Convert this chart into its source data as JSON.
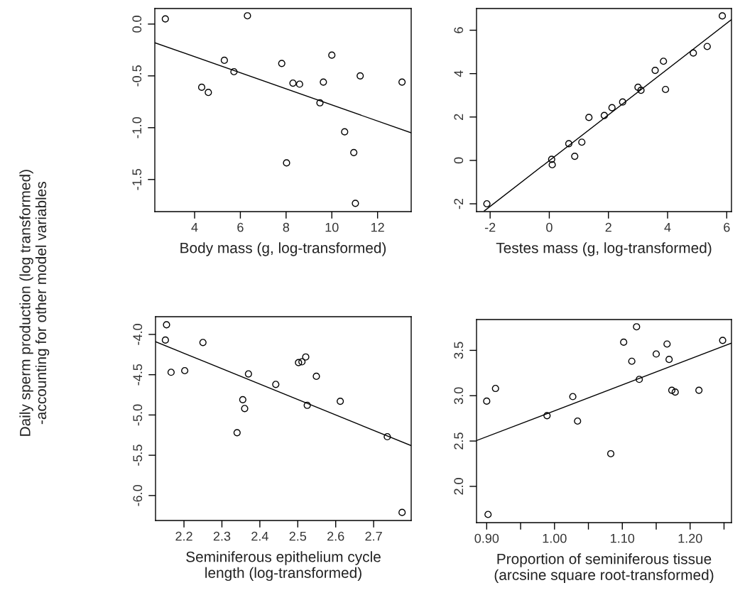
{
  "chart_data": [
    {
      "type": "scatter",
      "xlabel": "Body mass (g, log-transformed)",
      "ylabel": "Daily sperm production (log transformed)\n-accounting for other model variables",
      "xlim": [
        2.26,
        13.47
      ],
      "ylim": [
        -1.81,
        0.15
      ],
      "xticks": [
        4,
        6,
        8,
        10,
        12
      ],
      "yticks": [
        {
          "value": 0,
          "label": "0.0"
        },
        -0.5,
        {
          "value": -1,
          "label": "-1.0"
        },
        -1.5
      ],
      "series": [
        {
          "marker": "circle",
          "color": "#000000",
          "x": [
            2.72,
            6.31,
            5.3,
            5.72,
            4.31,
            4.6,
            7.81,
            8.3,
            8.59,
            10.0,
            9.63,
            11.24,
            9.48,
            10.56,
            10.96,
            8.02,
            11.03,
            13.07
          ],
          "values": [
            0.05,
            0.08,
            -0.35,
            -0.46,
            -0.61,
            -0.66,
            -0.38,
            -0.57,
            -0.58,
            -0.3,
            -0.56,
            -0.5,
            -0.76,
            -1.04,
            -1.24,
            -1.34,
            -1.73,
            -0.56
          ]
        },
        {
          "type": "line",
          "color": "#000000",
          "x": [
            2.26,
            13.47
          ],
          "values": [
            -0.18,
            -1.05
          ]
        }
      ]
    },
    {
      "type": "scatter",
      "xlabel": "Testes mass (g, log-transformed)",
      "xlim": [
        -2.46,
        6.16
      ],
      "ylim": [
        -2.36,
        7.0
      ],
      "xticks": [
        -2,
        0,
        2,
        4,
        6
      ],
      "yticks": [
        -2,
        0,
        2,
        4,
        6
      ],
      "series": [
        {
          "marker": "circle",
          "color": "#000000",
          "x": [
            -2.11,
            0.08,
            0.1,
            0.66,
            0.86,
            1.1,
            1.34,
            1.86,
            2.12,
            2.48,
            3.0,
            3.1,
            3.58,
            3.86,
            3.93,
            4.87,
            5.34,
            5.85
          ],
          "values": [
            -2.0,
            0.05,
            -0.2,
            0.77,
            0.19,
            0.84,
            1.98,
            2.07,
            2.43,
            2.69,
            3.37,
            3.23,
            4.15,
            4.57,
            3.27,
            4.95,
            5.25,
            6.66
          ]
        },
        {
          "type": "line",
          "color": "#000000",
          "x": [
            -2.2,
            6.16
          ],
          "values": [
            -2.33,
            6.49
          ]
        }
      ]
    },
    {
      "type": "scatter",
      "xlabel": "Seminiferous epithelium cycle\nlength (log-transformed)",
      "xlim": [
        2.125,
        2.799
      ],
      "ylim": [
        -6.31,
        -3.78
      ],
      "xticks": [
        2.2,
        2.3,
        2.4,
        2.5,
        2.6,
        2.7
      ],
      "yticks": [
        {
          "value": -4,
          "label": "-4.0"
        },
        -4.5,
        {
          "value": -5,
          "label": "-5.0"
        },
        -5.5,
        {
          "value": -6,
          "label": "-6.0"
        }
      ],
      "series": [
        {
          "marker": "circle",
          "color": "#000000",
          "x": [
            2.154,
            2.151,
            2.166,
            2.202,
            2.25,
            2.34,
            2.355,
            2.36,
            2.37,
            2.442,
            2.502,
            2.511,
            2.521,
            2.525,
            2.549,
            2.612,
            2.736,
            2.775
          ],
          "values": [
            -3.88,
            -4.07,
            -4.47,
            -4.45,
            -4.1,
            -5.22,
            -4.81,
            -4.92,
            -4.49,
            -4.62,
            -4.35,
            -4.34,
            -4.28,
            -4.88,
            -4.52,
            -4.83,
            -5.27,
            -6.21
          ]
        },
        {
          "type": "line",
          "color": "#000000",
          "x": [
            2.125,
            2.799
          ],
          "values": [
            -4.09,
            -5.38
          ]
        }
      ]
    },
    {
      "type": "scatter",
      "xlabel": "Proportion of seminiferous tissue\n(arcsine square root-transformed)",
      "xlim": [
        0.885,
        1.261
      ],
      "ylim": [
        1.6,
        3.84
      ],
      "xticks": [
        {
          "value": 0.9,
          "label": "0.90"
        },
        {
          "value": 0.95,
          "label": null
        },
        {
          "value": 1.0,
          "label": "1.00"
        },
        {
          "value": 1.05,
          "label": null
        },
        {
          "value": 1.1,
          "label": "1.10"
        },
        {
          "value": 1.15,
          "label": null
        },
        {
          "value": 1.2,
          "label": "1.20"
        },
        {
          "value": 1.25,
          "label": null
        }
      ],
      "yticks": [
        {
          "value": 2,
          "label": "2.0"
        },
        2.5,
        {
          "value": 3,
          "label": "3.0"
        },
        3.5
      ],
      "series": [
        {
          "marker": "circle",
          "color": "#000000",
          "x": [
            0.9,
            0.902,
            0.913,
            0.989,
            1.027,
            1.034,
            1.083,
            1.102,
            1.114,
            1.121,
            1.125,
            1.15,
            1.166,
            1.169,
            1.173,
            1.178,
            1.213,
            1.248
          ],
          "values": [
            2.94,
            1.69,
            3.08,
            2.78,
            2.99,
            2.72,
            2.36,
            3.59,
            3.38,
            3.76,
            3.18,
            3.46,
            3.57,
            3.4,
            3.06,
            3.04,
            3.06,
            3.61
          ]
        },
        {
          "type": "line",
          "color": "#000000",
          "x": [
            0.885,
            1.261
          ],
          "values": [
            2.505,
            3.58
          ]
        }
      ]
    }
  ]
}
